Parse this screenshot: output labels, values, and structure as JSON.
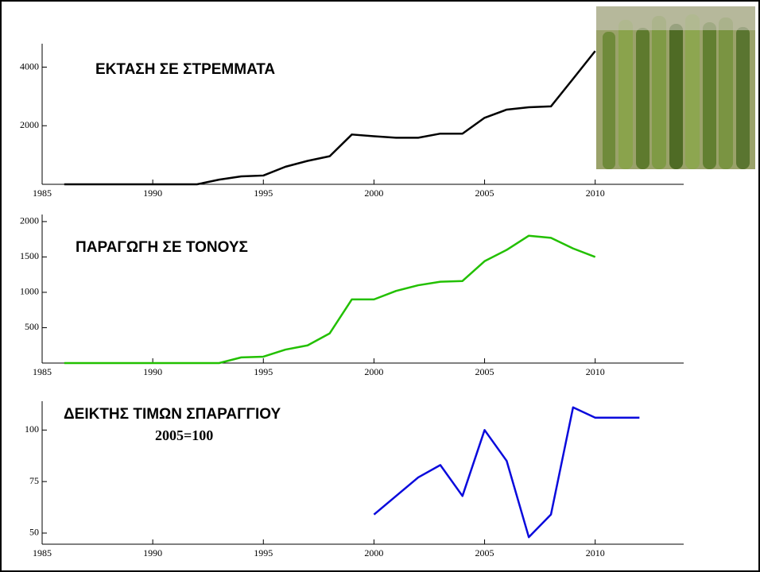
{
  "chart_data": [
    {
      "type": "line",
      "title": "ΕΚΤΑΣΗ ΣΕ ΣΤΡΕΜΜΑΤΑ",
      "x": [
        1986,
        1987,
        1988,
        1989,
        1990,
        1991,
        1992,
        1993,
        1994,
        1995,
        1996,
        1997,
        1998,
        1999,
        2000,
        2001,
        2002,
        2003,
        2004,
        2005,
        2006,
        2007,
        2008,
        2009,
        2010
      ],
      "series": [
        {
          "name": "ΕΚΤΑΣΗ ΣΕ ΣΤΡΕΜΜΑΤΑ",
          "color": "#000000",
          "values": [
            0,
            0,
            0,
            0,
            0,
            0,
            0,
            160,
            270,
            300,
            600,
            800,
            960,
            1700,
            1640,
            1590,
            1590,
            1730,
            1730,
            2270,
            2550,
            2630,
            2660,
            3600,
            4550
          ]
        }
      ],
      "xlim": [
        1985,
        2014
      ],
      "xticks": [
        1985,
        1990,
        1995,
        2000,
        2005,
        2010
      ],
      "ylim": [
        0,
        4800
      ],
      "yticks": [
        2000,
        4000
      ]
    },
    {
      "type": "line",
      "title": "ΠΑΡΑΓΩΓΗ ΣΕ ΤΟΝΟΥΣ",
      "x": [
        1986,
        1987,
        1988,
        1989,
        1990,
        1991,
        1992,
        1993,
        1994,
        1995,
        1996,
        1997,
        1998,
        1999,
        2000,
        2001,
        2002,
        2003,
        2004,
        2005,
        2006,
        2007,
        2008,
        2009,
        2010
      ],
      "series": [
        {
          "name": "ΠΑΡΑΓΩΓΗ ΣΕ ΤΟΝΟΥΣ",
          "color": "#22c000",
          "values": [
            0,
            0,
            0,
            0,
            0,
            0,
            0,
            0,
            80,
            90,
            190,
            250,
            420,
            900,
            900,
            1020,
            1100,
            1150,
            1160,
            1440,
            1600,
            1800,
            1770,
            1620,
            1500
          ]
        }
      ],
      "xlim": [
        1985,
        2014
      ],
      "xticks": [
        1985,
        1990,
        1995,
        2000,
        2005,
        2010
      ],
      "ylim": [
        0,
        2100
      ],
      "yticks": [
        500,
        1000,
        1500,
        2000
      ]
    },
    {
      "type": "line",
      "title": "ΔΕΙΚΤΗΣ ΤΙΜΩΝ ΣΠΑΡΑΓΓΙΟΥ",
      "subtitle": "2005=100",
      "x": [
        2000,
        2001,
        2002,
        2003,
        2004,
        2005,
        2006,
        2007,
        2008,
        2009,
        2010,
        2011,
        2012
      ],
      "series": [
        {
          "name": "ΔΕΙΚΤΗΣ ΤΙΜΩΝ ΣΠΑΡΑΓΓΙΟΥ",
          "color": "#0a0adc",
          "values": [
            59,
            68,
            77,
            83,
            68,
            100,
            85,
            48,
            59,
            111,
            106,
            106,
            106
          ]
        }
      ],
      "xlim": [
        1985,
        2014
      ],
      "xticks": [
        1985,
        1990,
        1995,
        2000,
        2005,
        2010
      ],
      "ylim": [
        44.6,
        114
      ],
      "yticks": [
        50,
        75,
        100
      ]
    }
  ]
}
